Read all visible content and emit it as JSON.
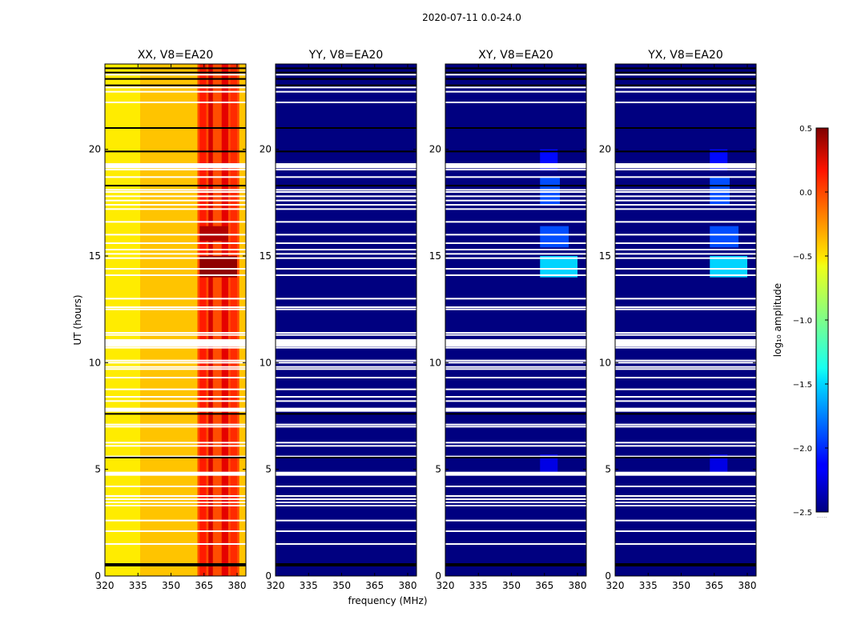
{
  "chart_data": {
    "type": "heatmap",
    "title": "2020-07-11 0.0-24.0",
    "xlabel": "frequency (MHz)",
    "ylabel": "UT (hours)",
    "xlim": [
      320,
      384
    ],
    "ylim": [
      0,
      24
    ],
    "xticks": [
      320,
      335,
      350,
      365,
      380
    ],
    "yticks": [
      0,
      5,
      10,
      15,
      20
    ],
    "colorbar": {
      "label": "log₁₀ amplitude",
      "range": [
        -2.5,
        0.5
      ],
      "ticks": [
        "0.5",
        "0.0",
        "−0.5",
        "−1.0",
        "−1.5",
        "−2.0",
        "−2.5"
      ],
      "tick_values": [
        0.5,
        0.0,
        -0.5,
        -1.0,
        -1.5,
        -2.0,
        -2.5
      ],
      "footer": "......"
    },
    "panels": [
      {
        "name": "XX, V8=EA20",
        "mode": "high",
        "level_low_band": -0.45,
        "level_high_band": 0.15,
        "high_band_mhz": [
          362,
          384
        ]
      },
      {
        "name": "YY, V8=EA20",
        "mode": "low",
        "level": -2.5
      },
      {
        "name": "XY, V8=EA20",
        "mode": "low",
        "level": -2.5,
        "bright_patches": [
          {
            "t0": 14.0,
            "t1": 15.0,
            "f0": 363,
            "f1": 380,
            "level": -1.5
          },
          {
            "t0": 15.4,
            "t1": 16.4,
            "f0": 363,
            "f1": 376,
            "level": -1.9
          },
          {
            "t0": 17.4,
            "t1": 18.7,
            "f0": 363,
            "f1": 372,
            "level": -1.9
          },
          {
            "t0": 19.0,
            "t1": 20.0,
            "f0": 363,
            "f1": 371,
            "level": -2.1
          },
          {
            "t0": 4.8,
            "t1": 5.7,
            "f0": 363,
            "f1": 371,
            "level": -2.2
          }
        ]
      },
      {
        "name": "YX, V8=EA20",
        "mode": "low",
        "level": -2.5,
        "bright_patches": [
          {
            "t0": 14.0,
            "t1": 15.0,
            "f0": 363,
            "f1": 380,
            "level": -1.5
          },
          {
            "t0": 15.4,
            "t1": 16.4,
            "f0": 363,
            "f1": 376,
            "level": -1.9
          },
          {
            "t0": 17.4,
            "t1": 18.7,
            "f0": 363,
            "f1": 372,
            "level": -1.9
          },
          {
            "t0": 19.0,
            "t1": 20.0,
            "f0": 363,
            "f1": 371,
            "level": -2.1
          },
          {
            "t0": 4.8,
            "t1": 5.7,
            "f0": 363,
            "f1": 371,
            "level": -2.2
          }
        ]
      }
    ],
    "flagged_ut_hours": [
      1.5,
      2.1,
      2.6,
      3.3,
      3.45,
      3.6,
      3.75,
      4.2,
      4.75,
      4.85,
      5.6,
      6.1,
      6.25,
      7.0,
      7.1,
      7.75,
      7.85,
      8.2,
      8.4,
      8.75,
      9.3,
      9.7,
      9.8,
      10.0,
      10.1,
      10.7,
      10.8,
      10.9,
      11.3,
      11.4,
      12.5,
      12.6,
      13.0,
      14.1,
      14.4,
      14.9,
      15.1,
      15.3,
      15.6,
      16.0,
      16.6,
      17.2,
      17.4,
      17.6,
      17.8,
      18.0,
      18.1,
      18.7,
      19.05,
      19.15,
      19.25,
      22.2,
      22.7,
      22.9,
      23.5
    ],
    "dark_ut_hours": [
      0.5,
      0.55,
      5.55,
      7.6,
      18.3,
      19.9,
      21.0,
      23.0,
      23.3,
      23.6,
      23.8
    ]
  }
}
